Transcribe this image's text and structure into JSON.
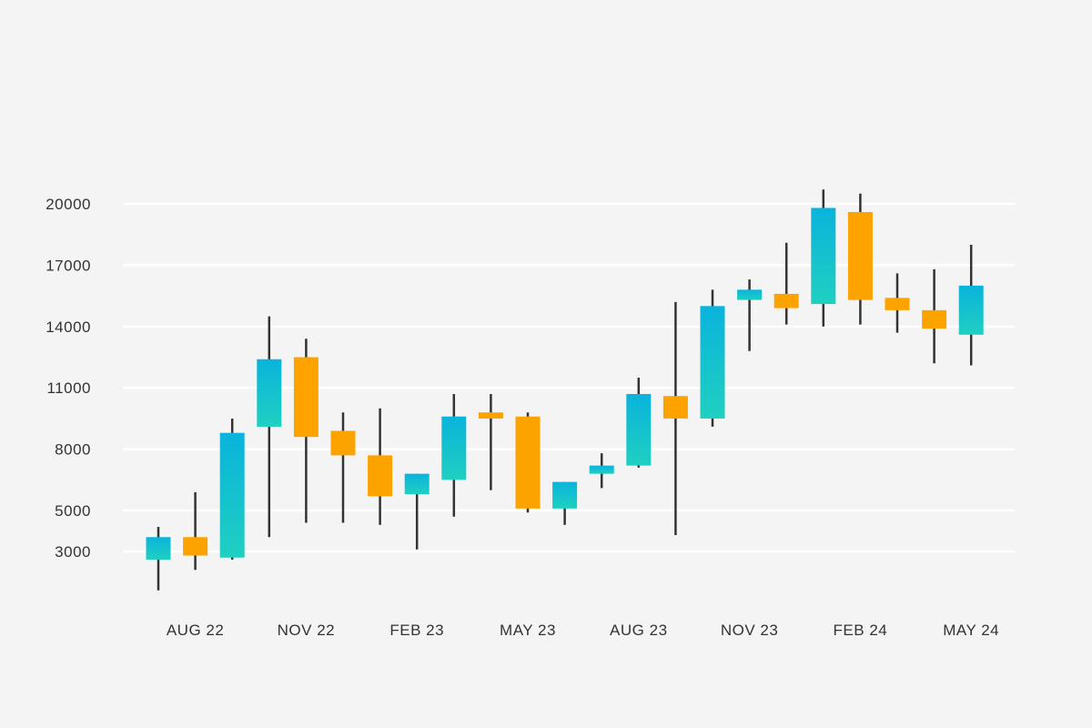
{
  "chart_data": {
    "type": "candlestick",
    "title": "",
    "xlabel": "",
    "ylabel": "",
    "ylim": [
      1500,
      21000
    ],
    "yticks": [
      3000,
      5000,
      8000,
      11000,
      14000,
      17000,
      20000
    ],
    "grid": true,
    "legend": "none",
    "x_tick_labels": [
      "AUG 22",
      "NOV 22",
      "FEB 23",
      "MAY 23",
      "AUG 23",
      "NOV 23",
      "FEB 24",
      "MAY 24"
    ],
    "candles": [
      {
        "open": 2600,
        "high": 4200,
        "low": 1100,
        "close": 3700
      },
      {
        "open": 3700,
        "high": 5900,
        "low": 2100,
        "close": 2800
      },
      {
        "open": 2700,
        "high": 9500,
        "low": 2600,
        "close": 8800
      },
      {
        "open": 9100,
        "high": 14500,
        "low": 3700,
        "close": 12400
      },
      {
        "open": 12500,
        "high": 13400,
        "low": 4400,
        "close": 8600
      },
      {
        "open": 8900,
        "high": 9800,
        "low": 4400,
        "close": 7700
      },
      {
        "open": 7700,
        "high": 10000,
        "low": 4300,
        "close": 5700
      },
      {
        "open": 5800,
        "high": 6800,
        "low": 3100,
        "close": 6800
      },
      {
        "open": 6500,
        "high": 10700,
        "low": 4700,
        "close": 9600
      },
      {
        "open": 9800,
        "high": 10700,
        "low": 6000,
        "close": 9500
      },
      {
        "open": 9600,
        "high": 9800,
        "low": 4900,
        "close": 5100
      },
      {
        "open": 5100,
        "high": 6400,
        "low": 4300,
        "close": 6400
      },
      {
        "open": 6800,
        "high": 7800,
        "low": 6100,
        "close": 7200
      },
      {
        "open": 7200,
        "high": 11500,
        "low": 7100,
        "close": 10700
      },
      {
        "open": 10600,
        "high": 15200,
        "low": 3800,
        "close": 9500
      },
      {
        "open": 9500,
        "high": 15800,
        "low": 9100,
        "close": 15000
      },
      {
        "open": 15300,
        "high": 16300,
        "low": 12800,
        "close": 15800
      },
      {
        "open": 15600,
        "high": 18100,
        "low": 14100,
        "close": 14900
      },
      {
        "open": 15100,
        "high": 20700,
        "low": 14000,
        "close": 19800
      },
      {
        "open": 19600,
        "high": 20500,
        "low": 14100,
        "close": 15300
      },
      {
        "open": 15400,
        "high": 16600,
        "low": 13700,
        "close": 14800
      },
      {
        "open": 14800,
        "high": 16800,
        "low": 12200,
        "close": 13900
      },
      {
        "open": 13600,
        "high": 18000,
        "low": 12100,
        "close": 16000
      }
    ]
  },
  "colors": {
    "background": "#f4f4f4",
    "grid": "#ffffff",
    "bull_top": "#0ab3dc",
    "bull_bottom": "#1fd0c1",
    "bear": "#fda300",
    "wick": "#333333",
    "text": "#333333"
  }
}
